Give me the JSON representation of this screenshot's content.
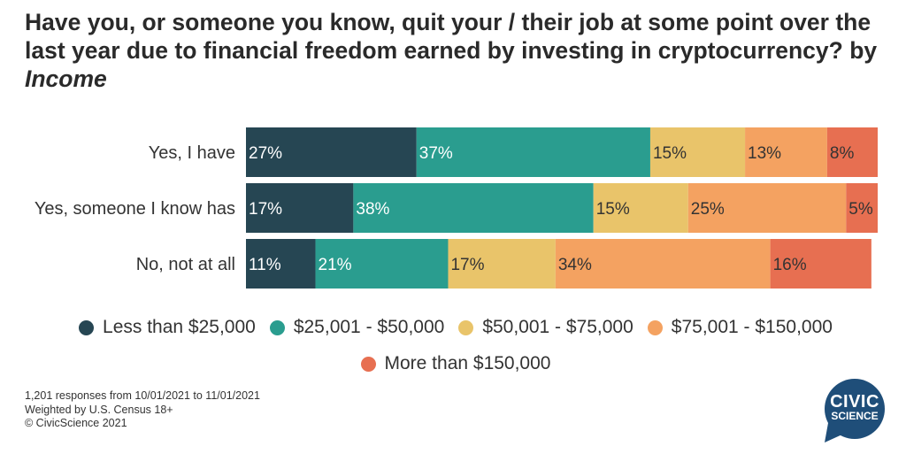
{
  "title": {
    "main": "Have you, or someone you know, quit your / their job at some point over the last year due to financial freedom earned by investing in cryptocurrency?",
    "by": "by",
    "dimension": "Income"
  },
  "chart_data": {
    "type": "bar",
    "orientation": "horizontal",
    "stacked": true,
    "categories": [
      "Yes, I have",
      "Yes, someone I know has",
      "No, not at all"
    ],
    "series": [
      {
        "name": "Less than $25,000",
        "color": "#264653",
        "values": [
          27,
          17,
          11
        ],
        "labels": [
          "27%",
          "17%",
          "11%"
        ],
        "label_color": "#ffffff"
      },
      {
        "name": "$25,001 - $50,000",
        "color": "#2a9d8f",
        "values": [
          37,
          38,
          21
        ],
        "labels": [
          "37%",
          "38%",
          "21%"
        ],
        "label_color": "#ffffff"
      },
      {
        "name": "$50,001 - $75,000",
        "color": "#e9c46a",
        "values": [
          15,
          15,
          17
        ],
        "labels": [
          "15%",
          "15%",
          "17%"
        ],
        "label_color": "#333333"
      },
      {
        "name": "$75,001 - $150,000",
        "color": "#f4a261",
        "values": [
          13,
          25,
          34
        ],
        "labels": [
          "13%",
          "25%",
          "34%"
        ],
        "label_color": "#333333"
      },
      {
        "name": "More than $150,000",
        "color": "#e76f51",
        "values": [
          8,
          5,
          16
        ],
        "labels": [
          "8%",
          "5%",
          "16%"
        ],
        "label_color": "#333333"
      }
    ],
    "xlim": [
      0,
      100
    ],
    "grid": false,
    "legend_position": "bottom"
  },
  "footnote": {
    "line1": "1,201 responses from 10/01/2021 to 11/01/2021",
    "line2": "Weighted by U.S. Census 18+",
    "line3": "© CivicScience 2021"
  },
  "logo": {
    "line1": "CIVIC",
    "line2": "SCIENCE",
    "color": "#1f4e79"
  }
}
